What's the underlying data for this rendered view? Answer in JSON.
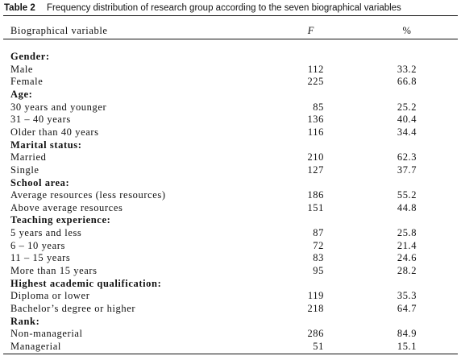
{
  "table": {
    "label": "Table 2",
    "caption": "Frequency distribution of research group according to the seven biographical variables",
    "header": [
      "Biographical variable",
      "F",
      "%"
    ],
    "sections": [
      {
        "heading": "Gender:",
        "rows": [
          [
            "Male",
            "112",
            "33.2"
          ],
          [
            "Female",
            "225",
            "66.8"
          ]
        ]
      },
      {
        "heading": "Age:",
        "rows": [
          [
            "30 years and younger",
            "85",
            "25.2"
          ],
          [
            "31 – 40 years",
            "136",
            "40.4"
          ],
          [
            "Older than 40 years",
            "116",
            "34.4"
          ]
        ]
      },
      {
        "heading": "Marital status:",
        "rows": [
          [
            "Married",
            "210",
            "62.3"
          ],
          [
            "Single",
            "127",
            "37.7"
          ]
        ]
      },
      {
        "heading": "School area:",
        "rows": [
          [
            "Average resources (less resources)",
            "186",
            "55.2"
          ],
          [
            "Above average resources",
            "151",
            "44.8"
          ]
        ]
      },
      {
        "heading": "Teaching experience:",
        "rows": [
          [
            "5 years and less",
            "87",
            "25.8"
          ],
          [
            "6 – 10 years",
            "72",
            "21.4"
          ],
          [
            "11 – 15 years",
            "83",
            "24.6"
          ],
          [
            "More than 15 years",
            "95",
            "28.2"
          ]
        ]
      },
      {
        "heading": "Highest academic qualification:",
        "rows": [
          [
            "Diploma or lower",
            "119",
            "35.3"
          ],
          [
            "Bachelor’s degree or higher",
            "218",
            "64.7"
          ]
        ]
      },
      {
        "heading": "Rank:",
        "rows": [
          [
            "Non-managerial",
            "286",
            "84.9"
          ],
          [
            "Managerial",
            "51",
            "15.1"
          ]
        ]
      }
    ]
  }
}
